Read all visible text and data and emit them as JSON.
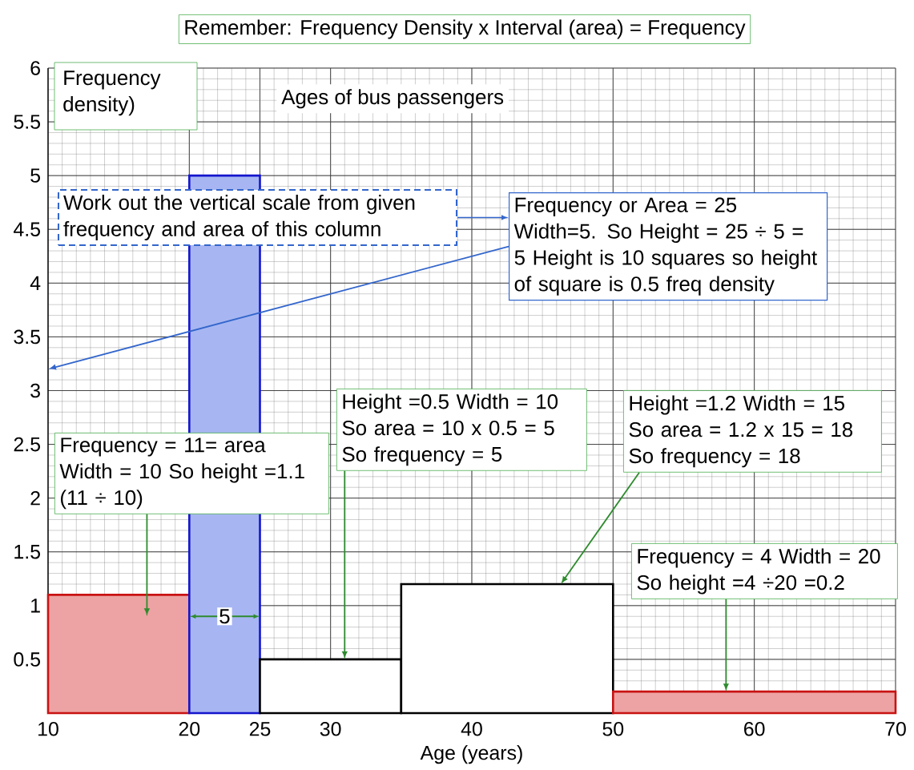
{
  "chart_data": {
    "type": "histogram",
    "title": "Ages of bus passengers",
    "xlabel": "Age (years)",
    "ylabel": "Frequency density)",
    "bins": [
      10,
      20,
      25,
      35,
      50,
      70
    ],
    "values": [
      1.1,
      5,
      0.5,
      1.2,
      0.2
    ],
    "colors": [
      "#eda3a3",
      "#a7b6f2",
      "#ffffff",
      "#ffffff",
      "#eda3a3"
    ],
    "xlim": [
      10,
      70
    ],
    "ylim": [
      0,
      6
    ],
    "xticks": [
      10,
      20,
      25,
      30,
      40,
      50,
      60,
      70
    ],
    "yticks": [
      0.5,
      1,
      1.5,
      2,
      2.5,
      3,
      3.5,
      4,
      4.5,
      5,
      5.5,
      6
    ],
    "grid": true,
    "annotations": [
      "Remember: Frequency Density x Interval (area) = Frequency",
      "Work out the vertical scale from given frequency and area of  this column",
      "Frequency or Area = 25 Width=5. So Height = 25 ÷ 5 = 5 Height is 10 squares so height of square is 0.5 freq density",
      "Frequency = 11= area Width = 10 So height =1.1 (11 ÷ 10)",
      "Height =0.5 Width = 10 So area = 10 x 0.5 = 5 So frequency = 5",
      "Height =1.2 Width = 15 So area = 1.2 x 15  = 18 So frequency = 18",
      "Frequency = 4 Width = 20 So height =4 ÷20 =0.2",
      {
        "text": "5",
        "x": 22.5,
        "y": 0.9
      }
    ]
  }
}
